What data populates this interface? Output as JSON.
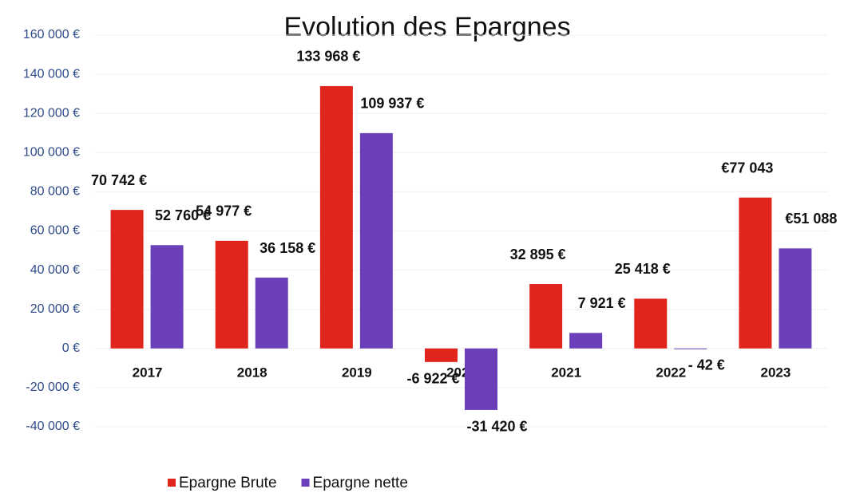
{
  "chart_data": {
    "type": "bar",
    "title": "Evolution des Epargnes",
    "categories": [
      "2017",
      "2018",
      "2019",
      "2020",
      "2021",
      "2022",
      "2023"
    ],
    "series": [
      {
        "name": "Epargne Brute",
        "color": "#e0261c",
        "values": [
          70742,
          54977,
          133968,
          -6922,
          32895,
          25418,
          77043
        ],
        "value_labels": [
          "70 742 €",
          "54 977 €",
          "133 968 €",
          "-6 922 €",
          "32 895 €",
          "25 418 €",
          "€77 043"
        ]
      },
      {
        "name": "Epargne nette",
        "color": "#6b3fba",
        "values": [
          52760,
          36158,
          109937,
          -31420,
          7921,
          -42,
          51088
        ],
        "value_labels": [
          "52 760 €",
          "36 158 €",
          "109 937 €",
          "-31 420 €",
          "7 921 €",
          "- 42 €",
          "€51 088"
        ]
      }
    ],
    "ylim": [
      -40000,
      160000
    ],
    "yticks": [
      {
        "value": -40000,
        "label": "-40 000 €"
      },
      {
        "value": -20000,
        "label": "-20 000 €"
      },
      {
        "value": 0,
        "label": "0 €"
      },
      {
        "value": 20000,
        "label": "20 000 €"
      },
      {
        "value": 40000,
        "label": "40 000 €"
      },
      {
        "value": 60000,
        "label": "60 000 €"
      },
      {
        "value": 80000,
        "label": "80 000 €"
      },
      {
        "value": 100000,
        "label": "100 000 €"
      },
      {
        "value": 120000,
        "label": "120 000 €"
      },
      {
        "value": 140000,
        "label": "140 000 €"
      },
      {
        "value": 160000,
        "label": "160 000 €"
      }
    ],
    "grid": true
  }
}
